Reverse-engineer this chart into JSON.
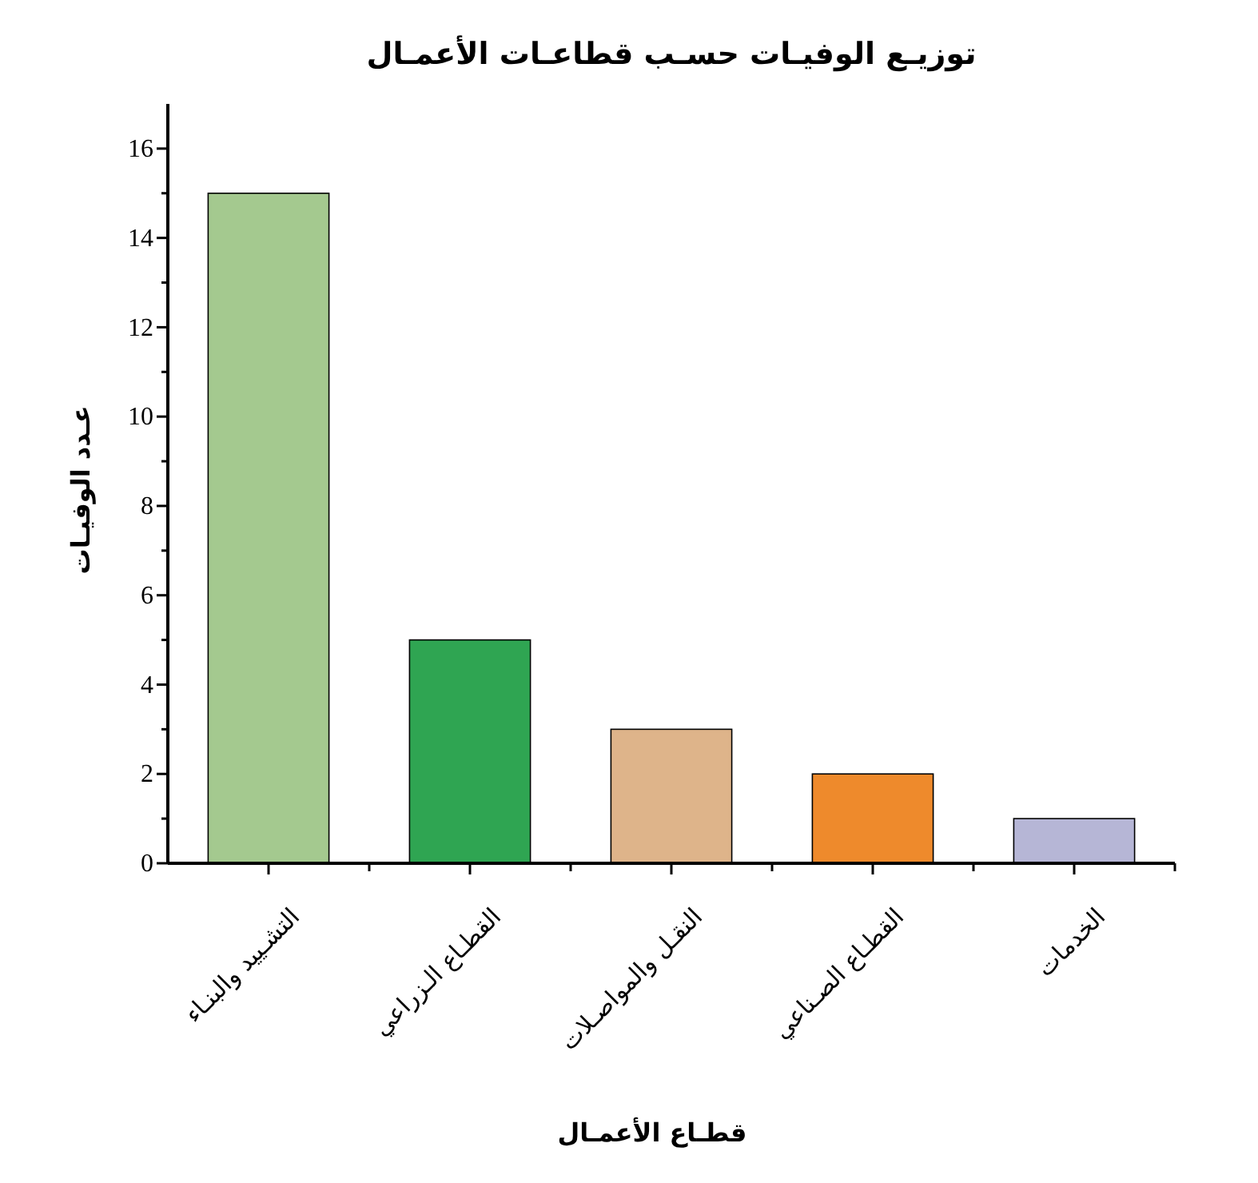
{
  "chart_data": {
    "type": "bar",
    "title": "توزيـع الوفيـات حسـب قطاعـات الأعمـال",
    "xlabel": "قطـاع الأعمـال",
    "ylabel": "عـدد الوفيـات",
    "categories": [
      "التشـييد والبنـاء",
      "القطـاع الـزراعي",
      "النقـل والمواصـلات",
      "القطـاع الصـناعي",
      "الخدمات"
    ],
    "values": [
      15,
      5,
      3,
      2,
      1
    ],
    "colors": [
      "#a4c98f",
      "#2fa552",
      "#deb48a",
      "#ee8a2c",
      "#b6b6d6"
    ],
    "ylim": [
      0,
      17
    ],
    "yticks": [
      0,
      {
        "value": 1,
        "label": null
      },
      2,
      {
        "value": 3,
        "label": null
      },
      4,
      {
        "value": 5,
        "label": null
      },
      6,
      {
        "value": 7,
        "label": null
      },
      8,
      {
        "value": 9,
        "label": null
      },
      10,
      {
        "value": 11,
        "label": null
      },
      12,
      {
        "value": 13,
        "label": null
      },
      14,
      {
        "value": 15,
        "label": null
      },
      16
    ],
    "grid": false
  }
}
